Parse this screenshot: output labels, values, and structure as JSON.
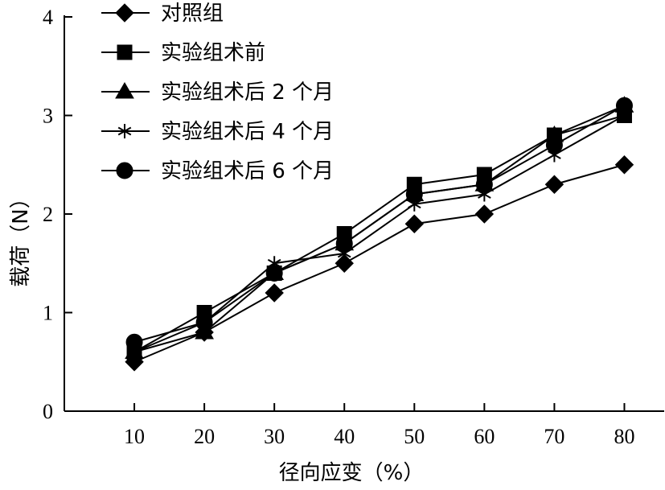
{
  "chart_data": {
    "type": "line",
    "title": "",
    "xlabel": "径向应变（%）",
    "ylabel": "载荷（N）",
    "x": [
      10,
      20,
      30,
      40,
      50,
      60,
      70,
      80
    ],
    "xlim": [
      0,
      85
    ],
    "ylim": [
      0,
      4
    ],
    "x_ticks": [
      "10",
      "20",
      "30",
      "40",
      "50",
      "60",
      "70",
      "80"
    ],
    "y_ticks": [
      "0",
      "1",
      "2",
      "3",
      "4"
    ],
    "grid": false,
    "legend_position": "top-left",
    "series": [
      {
        "name": "对照组",
        "marker": "diamond",
        "values": [
          0.5,
          0.8,
          1.2,
          1.5,
          1.9,
          2.0,
          2.3,
          2.5
        ]
      },
      {
        "name": "实验组术前",
        "marker": "square",
        "values": [
          0.6,
          1.0,
          1.4,
          1.8,
          2.3,
          2.4,
          2.8,
          3.0
        ]
      },
      {
        "name": "实验组术后 2 个月",
        "marker": "triangle",
        "values": [
          0.6,
          0.8,
          1.4,
          1.7,
          2.2,
          2.3,
          2.8,
          3.1
        ]
      },
      {
        "name": "实验组术后 4 个月",
        "marker": "star",
        "values": [
          0.6,
          0.9,
          1.5,
          1.6,
          2.1,
          2.2,
          2.6,
          3.0
        ]
      },
      {
        "name": "实验组术后 6 个月",
        "marker": "circle",
        "values": [
          0.7,
          0.9,
          1.4,
          1.7,
          2.2,
          2.3,
          2.7,
          3.1
        ]
      }
    ]
  }
}
